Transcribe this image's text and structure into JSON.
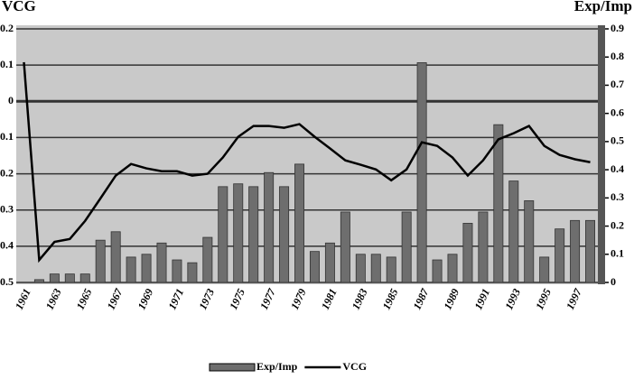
{
  "chart_data": {
    "type": "combo",
    "y_label": "VCG",
    "y2_label": "Exp/Imp",
    "categories": [
      "1961",
      null,
      "1963",
      null,
      "1965",
      null,
      "1967",
      null,
      "1969",
      null,
      "1971",
      null,
      "1973",
      null,
      "1975",
      null,
      "1977",
      null,
      "1979",
      null,
      "1981",
      null,
      "1983",
      null,
      "1985",
      null,
      "1987",
      null,
      "1989",
      null,
      "1991",
      null,
      "1993",
      null,
      "1995",
      null,
      "1997",
      null
    ],
    "series": [
      {
        "name": "Exp/Imp",
        "type": "bar",
        "axis": "y2",
        "color": "#6e6e6e",
        "values": [
          0,
          0.01,
          0.03,
          0.03,
          0.03,
          0.15,
          0.18,
          0.09,
          0.1,
          0.14,
          0.08,
          0.07,
          0.16,
          0.34,
          0.35,
          0.34,
          0.39,
          0.34,
          0.42,
          0.11,
          0.14,
          0.25,
          0.1,
          0.1,
          0.09,
          0.25,
          0.78,
          0.08,
          0.1,
          0.21,
          0.25,
          0.56,
          0.36,
          0.29,
          0.09,
          0.19,
          0.22,
          0.22
        ]
      },
      {
        "name": "VCG",
        "type": "line",
        "color": "#000000",
        "values": [
          0.108,
          -0.438,
          -0.388,
          -0.38,
          -0.33,
          -0.268,
          -0.205,
          -0.173,
          -0.185,
          -0.193,
          -0.193,
          -0.205,
          -0.2,
          -0.155,
          -0.098,
          -0.068,
          -0.068,
          -0.073,
          -0.063,
          -0.098,
          -0.13,
          -0.163,
          -0.175,
          -0.188,
          -0.218,
          -0.188,
          -0.113,
          -0.123,
          -0.155,
          -0.205,
          -0.163,
          -0.105,
          -0.088,
          -0.068,
          -0.123,
          -0.148,
          -0.16,
          -0.168
        ]
      }
    ],
    "ylim": [
      -0.5,
      0.2
    ],
    "yticks": [
      0.2,
      0.1,
      0,
      -0.1,
      -0.2,
      -0.3,
      -0.4,
      -0.5
    ],
    "y2lim": [
      0,
      0.9
    ],
    "y2ticks": [
      0.9,
      0.8,
      0.7,
      0.6,
      0.5,
      0.4,
      0.3,
      0.2,
      0.1,
      0
    ],
    "grid": true,
    "background": "#c9c9c9"
  }
}
